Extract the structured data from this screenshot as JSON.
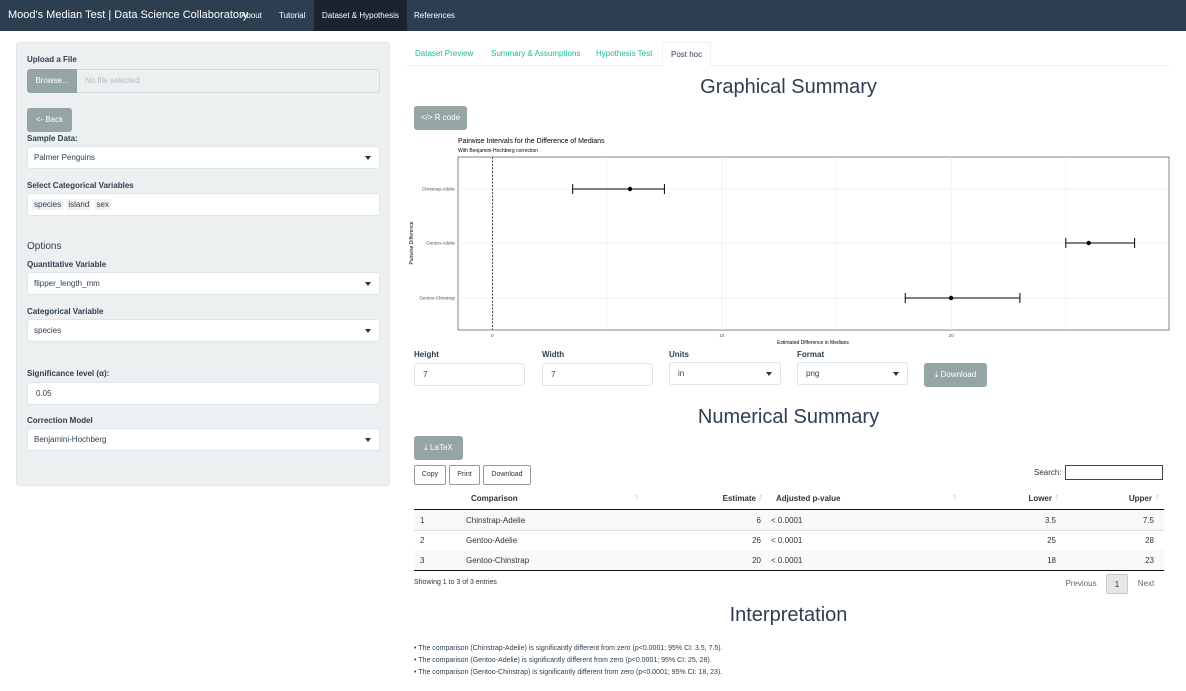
{
  "navbar": {
    "brand": "Mood's Median Test | Data Science Collaboratory",
    "links": [
      "About",
      "Tutorial",
      "Dataset & Hypothesis",
      "References"
    ]
  },
  "sidebar": {
    "upload_label": "Upload a File",
    "browse_label": "Browse...",
    "file_placeholder": "No file selected",
    "back_label": "<- Back",
    "sample_data_label": "Sample Data:",
    "sample_data_value": "Palmer Penguins",
    "categorical_vars_label": "Select Categorical Variables",
    "categorical_vars": [
      "species",
      "island",
      "sex"
    ],
    "options_title": "Options",
    "quant_label": "Quantitative Variable",
    "quant_value": "flipper_length_mm",
    "cat_label": "Categorical Variable",
    "cat_value": "species",
    "alpha_label": "Significance level (α):",
    "alpha_value": "0.05",
    "correction_label": "Correction Model",
    "correction_value": "Benjamini-Hochberg"
  },
  "tabs": [
    "Dataset Preview",
    "Summary & Assumptions",
    "Hypothesis Test",
    "Post hoc"
  ],
  "graphical": {
    "title": "Graphical Summary",
    "rcode_label": "R code",
    "height_label": "Height",
    "height_value": "7",
    "width_label": "Width",
    "width_value": "7",
    "units_label": "Units",
    "units_value": "in",
    "format_label": "Format",
    "format_value": "png",
    "download_label": "Download"
  },
  "chart_data": {
    "type": "scatter",
    "title": "Pairwise Intervals for the Difference of Medians",
    "subtitle": "With Benjamini-Hochberg correction",
    "xlabel": "Estimated Difference in Medians",
    "ylabel": "Pairwise Difference",
    "x_ticks": [
      0,
      10,
      20
    ],
    "xlim": [
      -1.5,
      29.5
    ],
    "reference_line": 0,
    "grid": true,
    "categories": [
      "Chinstrap-Adelie",
      "Gentoo-Adelie",
      "Gentoo-Chinstrap"
    ],
    "estimates": [
      6,
      26,
      20
    ],
    "lower": [
      3.5,
      25,
      18
    ],
    "upper": [
      7.5,
      28,
      23
    ]
  },
  "numerical": {
    "title": "Numerical Summary",
    "latex_label": "LaTeX",
    "buttons": [
      "Copy",
      "Print",
      "Download"
    ],
    "search_label": "Search:",
    "headers": [
      "Comparison",
      "Estimate",
      "Adjusted p-value",
      "Lower",
      "Upper"
    ],
    "rows": [
      {
        "idx": "1",
        "comparison": "Chinstrap-Adelie",
        "estimate": "6",
        "p": "< 0.0001",
        "lower": "3.5",
        "upper": "7.5"
      },
      {
        "idx": "2",
        "comparison": "Gentoo-Adelie",
        "estimate": "26",
        "p": "< 0.0001",
        "lower": "25",
        "upper": "28"
      },
      {
        "idx": "3",
        "comparison": "Gentoo-Chinstrap",
        "estimate": "20",
        "p": "< 0.0001",
        "lower": "18",
        "upper": "23"
      }
    ],
    "info": "Showing 1 to 3 of 3 entries",
    "pagination": {
      "previous": "Previous",
      "current": "1",
      "next": "Next"
    }
  },
  "interpretation": {
    "title": "Interpretation",
    "lines": [
      "• The comparison (Chinstrap-Adelie) is significantly different from zero (p<0.0001; 95% CI: 3.5, 7.5).",
      "• The comparison (Gentoo-Adelie) is significantly different from zero (p<0.0001; 95% CI: 25, 28).",
      "• The comparison (Gentoo-Chinstrap) is significantly different from zero (p<0.0001; 95% CI: 18, 23)."
    ]
  }
}
